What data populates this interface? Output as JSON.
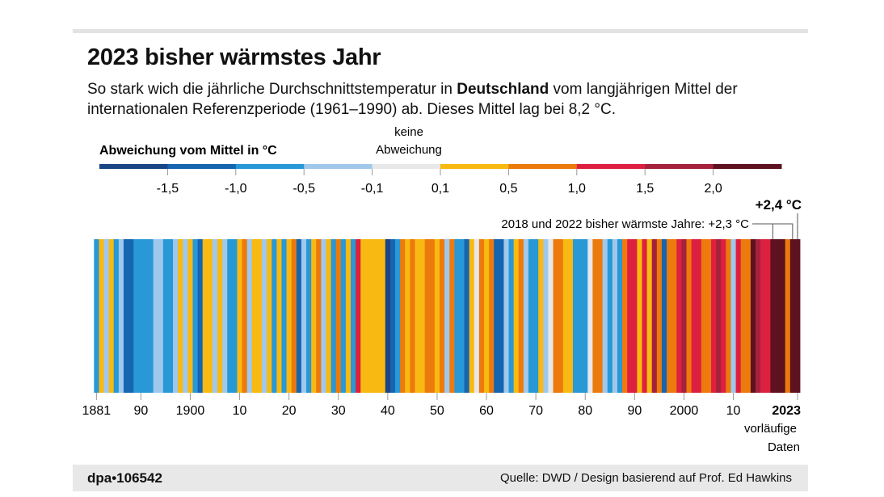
{
  "header": {
    "title": "2023 bisher wärmstes Jahr",
    "subtitle_pre": "So stark wich die jährliche Durchschnittstemperatur in ",
    "subtitle_bold": "Deutschland",
    "subtitle_post": " vom langjährigen Mittel der internationalen Referenzperiode (1961–1990) ab. Dieses Mittel lag bei 8,2 °C."
  },
  "chart_data": {
    "type": "heatmap",
    "title": "2023 bisher wärmstes Jahr",
    "legend": {
      "title": "Abweichung vom Mittel in °C",
      "center_label_line1": "keine",
      "center_label_line2": "Abweichung",
      "tick_labels": [
        "-1,5",
        "-1,0",
        "-0,5",
        "-0,1",
        "0,1",
        "0,5",
        "1,0",
        "1,5",
        "2,0"
      ],
      "bin_colors": [
        "#1a4585",
        "#1565b0",
        "#2898d6",
        "#9fc8ec",
        "#e8e8e8",
        "#f7b912",
        "#ec7a0c",
        "#de2040",
        "#a5223c",
        "#5e1220"
      ]
    },
    "x_start_year": 1881,
    "x_end_year": 2023,
    "x_tick_labels": [
      {
        "year": 1881,
        "label": "1881"
      },
      {
        "year": 1890,
        "label": "90"
      },
      {
        "year": 1900,
        "label": "1900"
      },
      {
        "year": 1910,
        "label": "10"
      },
      {
        "year": 1920,
        "label": "20"
      },
      {
        "year": 1930,
        "label": "30"
      },
      {
        "year": 1940,
        "label": "40"
      },
      {
        "year": 1950,
        "label": "50"
      },
      {
        "year": 1960,
        "label": "60"
      },
      {
        "year": 1970,
        "label": "70"
      },
      {
        "year": 1980,
        "label": "80"
      },
      {
        "year": 1990,
        "label": "90"
      },
      {
        "year": 2000,
        "label": "2000"
      },
      {
        "year": 2010,
        "label": "10"
      },
      {
        "year": 2023,
        "label": "2023"
      }
    ],
    "last_year_note_line1": "vorläufige",
    "last_year_note_line2": "Daten",
    "bins_by_year": [
      2,
      5,
      3,
      5,
      2,
      3,
      1,
      1,
      2,
      2,
      2,
      2,
      3,
      3,
      2,
      2,
      3,
      5,
      3,
      5,
      2,
      1,
      5,
      5,
      3,
      5,
      3,
      2,
      2,
      5,
      6,
      3,
      5,
      5,
      3,
      5,
      2,
      5,
      2,
      5,
      6,
      1,
      3,
      2,
      5,
      6,
      3,
      5,
      2,
      6,
      2,
      5,
      2,
      7,
      5,
      5,
      5,
      5,
      5,
      0,
      1,
      2,
      6,
      5,
      6,
      5,
      5,
      6,
      6,
      5,
      6,
      3,
      6,
      2,
      2,
      1,
      5,
      4,
      6,
      5,
      6,
      1,
      1,
      3,
      2,
      5,
      6,
      3,
      2,
      2,
      5,
      3,
      4,
      6,
      6,
      5,
      5,
      2,
      2,
      2,
      4,
      6,
      6,
      3,
      2,
      3,
      2,
      6,
      7,
      7,
      5,
      7,
      5,
      8,
      6,
      1,
      6,
      6,
      7,
      8,
      6,
      7,
      7,
      6,
      6,
      7,
      8,
      7,
      6,
      3,
      7,
      6,
      6,
      9,
      8,
      7,
      7,
      9,
      9,
      9,
      6,
      9,
      9
    ],
    "annotations": {
      "record_2023": "+2,4 °C",
      "previous_records": "2018 und 2022 bisher wärmste Jahre: +2,3 °C"
    }
  },
  "footer": {
    "logo": "dpa•106542",
    "source": "Quelle: DWD / Design basierend auf Prof. Ed Hawkins"
  }
}
